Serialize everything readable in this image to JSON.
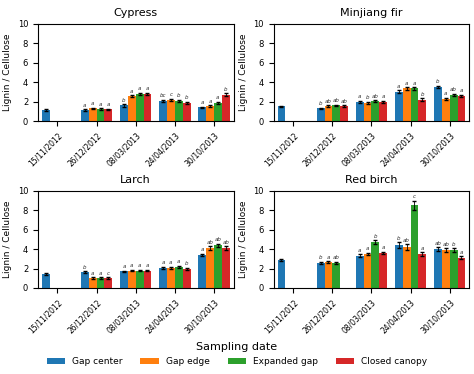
{
  "chart_data": [
    {
      "type": "bar",
      "title": "Cypress",
      "categories": [
        "15/11/2012",
        "26/12/2012",
        "08/03/2013",
        "24/04/2013",
        "30/10/2013"
      ],
      "y_label": "Lignin / Cellulose",
      "ylim": [
        0,
        10
      ],
      "yticks": [
        0,
        2,
        4,
        6,
        8,
        10
      ],
      "grid": false,
      "series": [
        {
          "name": "Gap center",
          "values": [
            1.15,
            1.15,
            1.6,
            2.1,
            1.4
          ],
          "errors": [
            0.08,
            0.08,
            0.12,
            0.1,
            0.08
          ],
          "significance": [
            null,
            "a",
            "b",
            "bc",
            "a"
          ]
        },
        {
          "name": "Gap edge",
          "values": [
            null,
            1.3,
            2.55,
            2.2,
            1.55
          ],
          "errors": [
            null,
            0.08,
            0.12,
            0.1,
            0.08
          ],
          "significance": [
            null,
            "a",
            "a",
            "c",
            "a"
          ]
        },
        {
          "name": "Expanded gap",
          "values": [
            null,
            1.25,
            2.8,
            2.1,
            1.9
          ],
          "errors": [
            null,
            0.08,
            0.12,
            0.1,
            0.1
          ],
          "significance": [
            null,
            "a",
            "a",
            "b",
            "a"
          ]
        },
        {
          "name": "Closed canopy",
          "values": [
            null,
            1.2,
            2.8,
            1.9,
            2.7
          ],
          "errors": [
            null,
            0.08,
            0.12,
            0.1,
            0.15
          ],
          "significance": [
            null,
            "a",
            "a",
            "b",
            "b"
          ]
        }
      ]
    },
    {
      "type": "bar",
      "title": "Minjiang fir",
      "categories": [
        "15/11/2012",
        "26/12/2012",
        "08/03/2013",
        "24/04/2013",
        "30/10/2013"
      ],
      "y_label": "Lignin / Cellulose",
      "ylim": [
        0,
        10
      ],
      "yticks": [
        0,
        2,
        4,
        6,
        8,
        10
      ],
      "grid": false,
      "series": [
        {
          "name": "Gap center",
          "values": [
            1.5,
            1.3,
            2.0,
            3.0,
            3.5
          ],
          "errors": [
            0.08,
            0.08,
            0.1,
            0.15,
            0.15
          ],
          "significance": [
            null,
            "b",
            "a",
            "a",
            "b"
          ]
        },
        {
          "name": "Gap edge",
          "values": [
            null,
            1.55,
            1.9,
            3.35,
            2.3
          ],
          "errors": [
            null,
            0.08,
            0.1,
            0.12,
            0.1
          ],
          "significance": [
            null,
            "ab",
            "b",
            "a",
            "a"
          ]
        },
        {
          "name": "Expanded gap",
          "values": [
            null,
            1.6,
            2.05,
            3.35,
            2.7
          ],
          "errors": [
            null,
            0.08,
            0.1,
            0.12,
            0.1
          ],
          "significance": [
            null,
            "ab",
            "ab",
            "a",
            "ab"
          ]
        },
        {
          "name": "Closed canopy",
          "values": [
            null,
            1.55,
            2.0,
            2.2,
            2.6
          ],
          "errors": [
            null,
            0.08,
            0.1,
            0.12,
            0.1
          ],
          "significance": [
            null,
            "ab",
            "a",
            "b",
            "a"
          ]
        }
      ]
    },
    {
      "type": "bar",
      "title": "Larch",
      "categories": [
        "15/11/2012",
        "26/12/2012",
        "08/03/2013",
        "24/04/2013",
        "30/10/2013"
      ],
      "y_label": "Lignin / Cellulose",
      "ylim": [
        0,
        10
      ],
      "yticks": [
        0,
        2,
        4,
        6,
        8,
        10
      ],
      "grid": false,
      "series": [
        {
          "name": "Gap center",
          "values": [
            1.4,
            1.6,
            1.7,
            2.1,
            3.4
          ],
          "errors": [
            0.1,
            0.1,
            0.1,
            0.1,
            0.15
          ],
          "significance": [
            null,
            "b",
            "a",
            "a",
            "a"
          ]
        },
        {
          "name": "Gap edge",
          "values": [
            null,
            1.0,
            1.8,
            2.1,
            4.1
          ],
          "errors": [
            null,
            0.08,
            0.1,
            0.1,
            0.18
          ],
          "significance": [
            null,
            "a",
            "a",
            "a",
            "ab"
          ]
        },
        {
          "name": "Expanded gap",
          "values": [
            null,
            1.0,
            1.8,
            2.2,
            4.4
          ],
          "errors": [
            null,
            0.08,
            0.1,
            0.1,
            0.18
          ],
          "significance": [
            null,
            "a",
            "a",
            "a",
            "ab"
          ]
        },
        {
          "name": "Closed canopy",
          "values": [
            null,
            1.0,
            1.8,
            2.0,
            4.1
          ],
          "errors": [
            null,
            0.08,
            0.1,
            0.1,
            0.18
          ],
          "significance": [
            null,
            "c",
            "a",
            "b",
            "ab"
          ]
        }
      ]
    },
    {
      "type": "bar",
      "title": "Red birch",
      "categories": [
        "15/11/2012",
        "26/12/2012",
        "08/03/2013",
        "24/04/2013",
        "30/10/2013"
      ],
      "y_label": "Lignin / Cellulose",
      "ylim": [
        0,
        10
      ],
      "yticks": [
        0,
        2,
        4,
        6,
        8,
        10
      ],
      "grid": false,
      "series": [
        {
          "name": "Gap center",
          "values": [
            2.85,
            2.6,
            3.3,
            4.4,
            4.0
          ],
          "errors": [
            0.12,
            0.1,
            0.15,
            0.3,
            0.2
          ],
          "significance": [
            null,
            "b",
            "a",
            "b",
            "ab"
          ]
        },
        {
          "name": "Gap edge",
          "values": [
            null,
            2.65,
            3.5,
            4.2,
            3.9
          ],
          "errors": [
            null,
            0.1,
            0.15,
            0.3,
            0.2
          ],
          "significance": [
            null,
            "a",
            "a",
            "ab",
            "ab"
          ]
        },
        {
          "name": "Expanded gap",
          "values": [
            null,
            2.6,
            4.7,
            8.5,
            3.9
          ],
          "errors": [
            null,
            0.1,
            0.2,
            0.5,
            0.2
          ],
          "significance": [
            null,
            "ab",
            "b",
            "c",
            "b"
          ]
        },
        {
          "name": "Closed canopy",
          "values": [
            null,
            null,
            3.6,
            3.5,
            3.1
          ],
          "errors": [
            null,
            null,
            0.15,
            0.2,
            0.15
          ],
          "significance": [
            null,
            null,
            "a",
            "a",
            "a"
          ]
        }
      ]
    }
  ],
  "x_label": "Sampling date",
  "legend": "lower center"
}
